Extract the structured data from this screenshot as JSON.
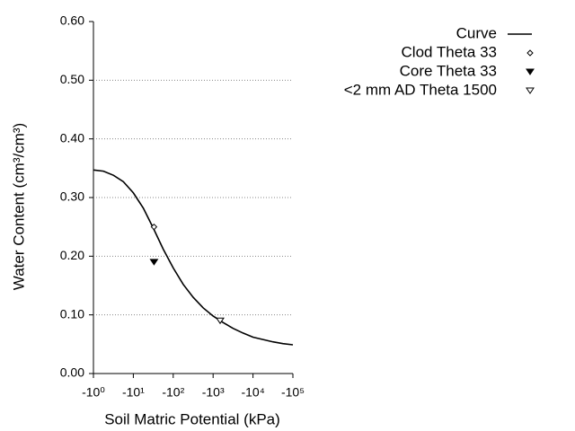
{
  "chart_data": {
    "type": "line",
    "x_label": "Soil Matric Potential (kPa)",
    "y_label": "Water Content (cm³/cm³)",
    "xscale": "log",
    "xlim": [
      -1,
      -100000
    ],
    "xticks": [
      {
        "value": -1,
        "label": "-10⁰"
      },
      {
        "value": -10,
        "label": "-10¹"
      },
      {
        "value": -100,
        "label": "-10²"
      },
      {
        "value": -1000,
        "label": "-10³"
      },
      {
        "value": -10000,
        "label": "-10⁴"
      },
      {
        "value": -100000,
        "label": "-10⁵"
      }
    ],
    "ylim": [
      0,
      0.6
    ],
    "yticks": [
      {
        "value": 0,
        "label": "0.00"
      },
      {
        "value": 0.1,
        "label": "0.10"
      },
      {
        "value": 0.2,
        "label": "0.20"
      },
      {
        "value": 0.3,
        "label": "0.30"
      },
      {
        "value": 0.4,
        "label": "0.40"
      },
      {
        "value": 0.5,
        "label": "0.50"
      },
      {
        "value": 0.6,
        "label": "0.60"
      }
    ],
    "grid": true,
    "legend": "top-right",
    "series": [
      {
        "name": "Curve",
        "color": "#000000",
        "style": "line",
        "x": [
          -1,
          -1.78,
          -3.16,
          -5.62,
          -10,
          -17.8,
          -31.6,
          -56.2,
          -100,
          -178,
          -316,
          -562,
          -1000,
          -1778,
          -3162,
          -5623,
          -10000,
          -17783,
          -31623,
          -56234,
          -100000
        ],
        "values": [
          0.347,
          0.345,
          0.338,
          0.327,
          0.308,
          0.282,
          0.248,
          0.212,
          0.18,
          0.152,
          0.13,
          0.112,
          0.098,
          0.087,
          0.077,
          0.069,
          0.062,
          0.058,
          0.054,
          0.051,
          0.049
        ]
      },
      {
        "name": "Clod Theta 33",
        "color": "#000000",
        "style": "diamond-open",
        "x": [
          -33
        ],
        "values": [
          0.25
        ]
      },
      {
        "name": "Core Theta 33",
        "color": "#000000",
        "style": "triangle-down-filled",
        "x": [
          -33
        ],
        "values": [
          0.19
        ]
      },
      {
        "name": "<2 mm AD Theta 1500",
        "color": "#000000",
        "style": "triangle-down-open",
        "x": [
          -1500
        ],
        "values": [
          0.09
        ]
      }
    ]
  }
}
